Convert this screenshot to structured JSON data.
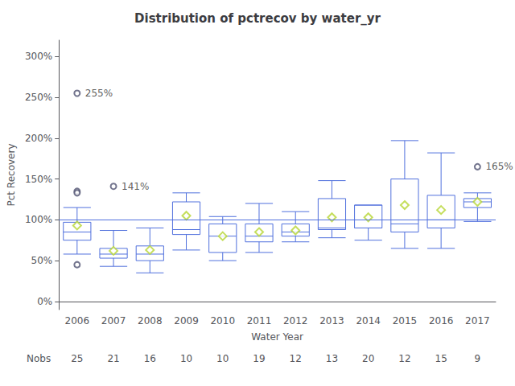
{
  "chart_data": {
    "type": "boxplot",
    "title": "Distribution of pctrecov by water_yr",
    "xlabel": "Water Year",
    "ylabel": "Pct Recovery",
    "categories": [
      "2006",
      "2007",
      "2008",
      "2009",
      "2010",
      "2011",
      "2012",
      "2013",
      "2014",
      "2015",
      "2016",
      "2017"
    ],
    "boxes": [
      {
        "whislo": 58,
        "q1": 75,
        "median": 85,
        "q3": 97,
        "whishi": 115
      },
      {
        "whislo": 43,
        "q1": 53,
        "median": 58,
        "q3": 65,
        "whishi": 87
      },
      {
        "whislo": 35,
        "q1": 50,
        "median": 58,
        "q3": 68,
        "whishi": 90
      },
      {
        "whislo": 63,
        "q1": 82,
        "median": 88,
        "q3": 122,
        "whishi": 133
      },
      {
        "whislo": 50,
        "q1": 60,
        "median": 80,
        "q3": 95,
        "whishi": 104
      },
      {
        "whislo": 60,
        "q1": 73,
        "median": 80,
        "q3": 95,
        "whishi": 120
      },
      {
        "whislo": 73,
        "q1": 80,
        "median": 85,
        "q3": 95,
        "whishi": 110
      },
      {
        "whislo": 78,
        "q1": 88,
        "median": 90,
        "q3": 126,
        "whishi": 148
      },
      {
        "whislo": 75,
        "q1": 90,
        "median": 90,
        "q3": 118,
        "whishi": 118
      },
      {
        "whislo": 65,
        "q1": 85,
        "median": 95,
        "q3": 150,
        "whishi": 197
      },
      {
        "whislo": 65,
        "q1": 90,
        "median": 100,
        "q3": 130,
        "whishi": 182
      },
      {
        "whislo": 98,
        "q1": 115,
        "median": 122,
        "q3": 126,
        "whishi": 133
      }
    ],
    "means": [
      93,
      62,
      63,
      105,
      80,
      85,
      87,
      103,
      103,
      118,
      112,
      122
    ],
    "fliers": [
      [
        255,
        135,
        133,
        45
      ],
      [
        141
      ],
      [],
      [],
      [],
      [],
      [],
      [],
      [],
      [],
      [],
      [
        165
      ]
    ],
    "nobs_label": "Nobs",
    "nobs": [
      25,
      21,
      16,
      10,
      10,
      19,
      12,
      13,
      20,
      12,
      15,
      9
    ],
    "annotations": [
      {
        "x": "2006",
        "y": 255,
        "text": "255%"
      },
      {
        "x": "2007",
        "y": 141,
        "text": "141%"
      },
      {
        "x": "2017",
        "y": 165,
        "text": "165%"
      }
    ],
    "reference_line": 100,
    "ylim": [
      -10,
      320
    ],
    "yticks": [
      {
        "value": 0,
        "label": "0%"
      },
      {
        "value": 50,
        "label": "50%"
      },
      {
        "value": 100,
        "label": "100%"
      },
      {
        "value": 150,
        "label": "150%"
      },
      {
        "value": 200,
        "label": "200%"
      },
      {
        "value": 250,
        "label": "250%"
      },
      {
        "value": 300,
        "label": "300%"
      }
    ],
    "grid": false
  }
}
